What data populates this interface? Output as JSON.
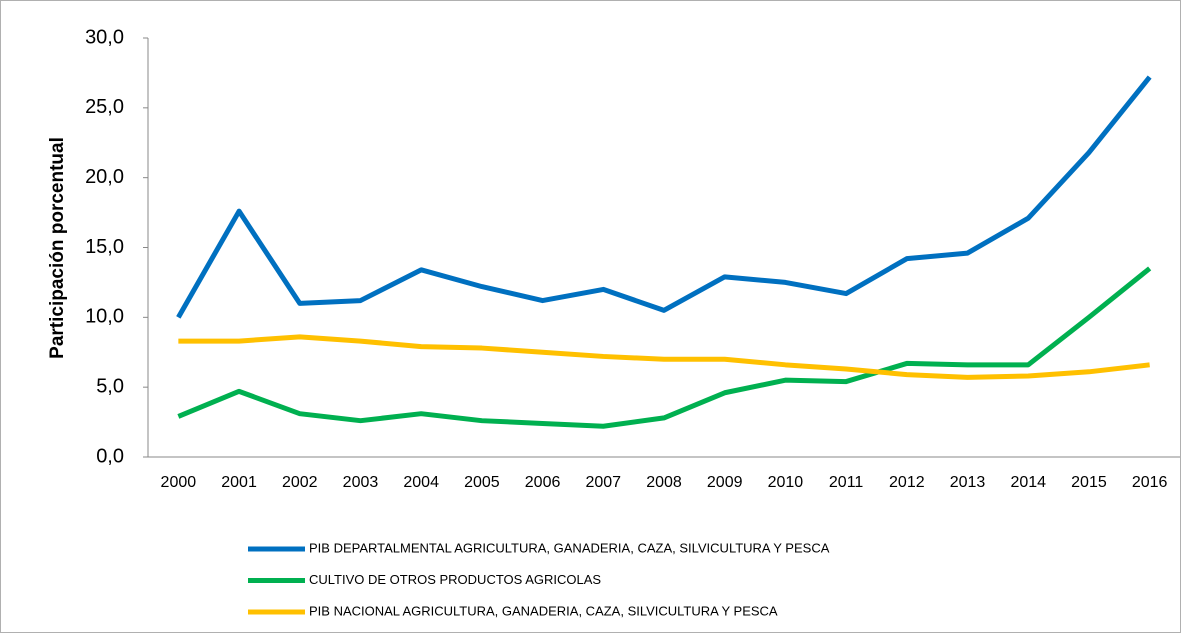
{
  "chart_data": {
    "type": "line",
    "y_label": "Participación porcentual",
    "categories": [
      "2000",
      "2001",
      "2002",
      "2003",
      "2004",
      "2005",
      "2006",
      "2007",
      "2008",
      "2009",
      "2010",
      "2011",
      "2012",
      "2013",
      "2014",
      "2015",
      "2016"
    ],
    "series": [
      {
        "name": "PIB DEPARTALMENTAL AGRICULTURA, GANADERIA, CAZA, SILVICULTURA Y PESCA",
        "color": "#0070c0",
        "values": [
          10.0,
          17.6,
          11.0,
          11.2,
          13.4,
          12.2,
          11.2,
          12.0,
          10.5,
          12.9,
          12.5,
          11.7,
          14.2,
          14.6,
          17.1,
          21.8,
          27.2
        ]
      },
      {
        "name": "CULTIVO DE OTROS PRODUCTOS AGRICOLAS",
        "color": "#00b050",
        "values": [
          2.9,
          4.7,
          3.1,
          2.6,
          3.1,
          2.6,
          2.4,
          2.2,
          2.8,
          4.6,
          5.5,
          5.4,
          6.7,
          6.6,
          6.6,
          10.0,
          13.5
        ]
      },
      {
        "name": "PIB NACIONAL AGRICULTURA, GANADERIA, CAZA, SILVICULTURA Y PESCA",
        "color": "#ffc000",
        "values": [
          8.3,
          8.3,
          8.6,
          8.3,
          7.9,
          7.8,
          7.5,
          7.2,
          7.0,
          7.0,
          6.6,
          6.3,
          5.9,
          5.7,
          5.8,
          6.1,
          6.6
        ]
      }
    ],
    "ylim": [
      0,
      30
    ],
    "yticks": [
      {
        "value": 0,
        "label": "0,0"
      },
      {
        "value": 5,
        "label": "5,0"
      },
      {
        "value": 10,
        "label": "10,0"
      },
      {
        "value": 15,
        "label": "15,0"
      },
      {
        "value": 20,
        "label": "20,0"
      },
      {
        "value": 25,
        "label": "25,0"
      },
      {
        "value": 30,
        "label": "30,0"
      }
    ],
    "grid": false,
    "legend": "bottom"
  }
}
